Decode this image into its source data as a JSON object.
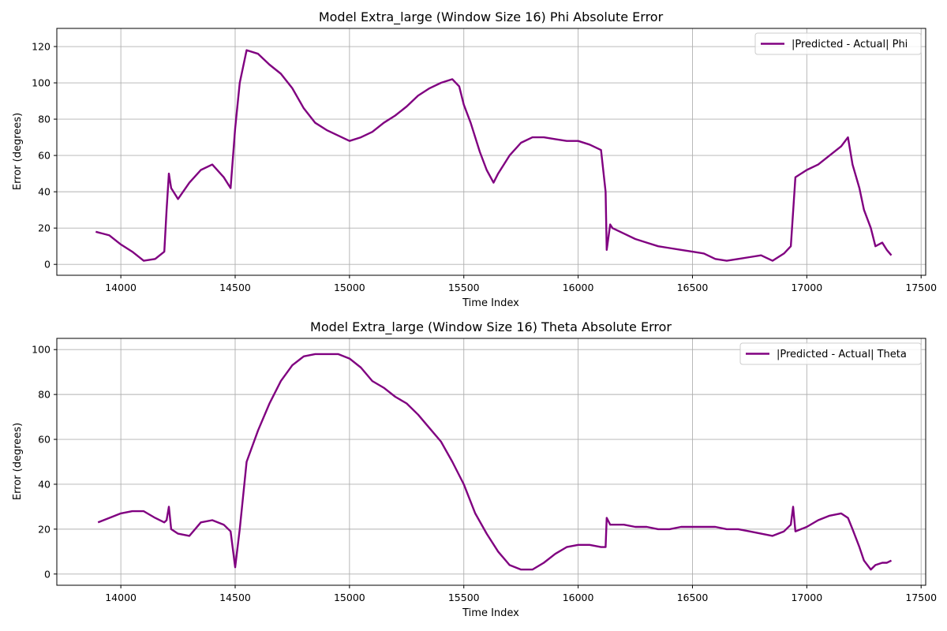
{
  "chart_data": [
    {
      "type": "line",
      "title": "Model Extra_large (Window Size 16) Phi Absolute Error",
      "xlabel": "Time Index",
      "ylabel": "Error (degrees)",
      "xlim": [
        13720,
        17520
      ],
      "ylim": [
        -6,
        130
      ],
      "xticks": [
        14000,
        14500,
        15000,
        15500,
        16000,
        16500,
        17000,
        17500
      ],
      "yticks": [
        0,
        20,
        40,
        60,
        80,
        100,
        120
      ],
      "grid": true,
      "legend_position": "top-right",
      "series": [
        {
          "name": "|Predicted - Actual| Phi",
          "color": "#800080",
          "x": [
            13890,
            13950,
            14000,
            14050,
            14100,
            14150,
            14190,
            14200,
            14210,
            14220,
            14250,
            14300,
            14350,
            14400,
            14450,
            14480,
            14500,
            14520,
            14550,
            14600,
            14650,
            14700,
            14750,
            14800,
            14850,
            14900,
            14950,
            15000,
            15050,
            15100,
            15150,
            15200,
            15250,
            15300,
            15350,
            15400,
            15450,
            15480,
            15500,
            15530,
            15570,
            15600,
            15630,
            15650,
            15700,
            15750,
            15800,
            15850,
            15900,
            15950,
            16000,
            16050,
            16100,
            16120,
            16125,
            16140,
            16150,
            16200,
            16250,
            16300,
            16350,
            16400,
            16450,
            16500,
            16550,
            16600,
            16650,
            16700,
            16750,
            16800,
            16850,
            16900,
            16930,
            16950,
            17000,
            17050,
            17100,
            17150,
            17180,
            17200,
            17230,
            17250,
            17280,
            17300,
            17330,
            17350,
            17370
          ],
          "y": [
            18,
            16,
            11,
            7,
            2,
            3,
            7,
            30,
            50,
            42,
            36,
            45,
            52,
            55,
            48,
            42,
            75,
            100,
            118,
            116,
            110,
            105,
            97,
            86,
            78,
            74,
            71,
            68,
            70,
            73,
            78,
            82,
            87,
            93,
            97,
            100,
            102,
            98,
            88,
            78,
            62,
            52,
            45,
            50,
            60,
            67,
            70,
            70,
            69,
            68,
            68,
            66,
            63,
            40,
            8,
            22,
            20,
            17,
            14,
            12,
            10,
            9,
            8,
            7,
            6,
            3,
            2,
            3,
            4,
            5,
            2,
            6,
            10,
            48,
            52,
            55,
            60,
            65,
            70,
            55,
            42,
            30,
            20,
            10,
            12,
            8,
            5
          ]
        }
      ]
    },
    {
      "type": "line",
      "title": "Model Extra_large (Window Size 16) Theta Absolute Error",
      "xlabel": "Time Index",
      "ylabel": "Error (degrees)",
      "xlim": [
        13720,
        17520
      ],
      "ylim": [
        -5,
        105
      ],
      "xticks": [
        14000,
        14500,
        15000,
        15500,
        16000,
        16500,
        17000,
        17500
      ],
      "yticks": [
        0,
        20,
        40,
        60,
        80,
        100
      ],
      "grid": true,
      "legend_position": "top-right",
      "series": [
        {
          "name": "|Predicted - Actual| Theta",
          "color": "#800080",
          "x": [
            13900,
            13950,
            14000,
            14050,
            14100,
            14150,
            14190,
            14200,
            14210,
            14220,
            14250,
            14300,
            14350,
            14400,
            14450,
            14480,
            14500,
            14520,
            14550,
            14600,
            14650,
            14700,
            14750,
            14800,
            14850,
            14900,
            14950,
            15000,
            15050,
            15100,
            15150,
            15200,
            15250,
            15300,
            15350,
            15400,
            15450,
            15500,
            15550,
            15600,
            15650,
            15700,
            15750,
            15800,
            15850,
            15900,
            15950,
            16000,
            16050,
            16100,
            16120,
            16125,
            16140,
            16150,
            16200,
            16250,
            16300,
            16350,
            16400,
            16450,
            16500,
            16550,
            16600,
            16650,
            16700,
            16750,
            16800,
            16850,
            16900,
            16930,
            16940,
            16950,
            17000,
            17050,
            17100,
            17150,
            17180,
            17200,
            17230,
            17250,
            17280,
            17300,
            17330,
            17350,
            17370
          ],
          "y": [
            23,
            25,
            27,
            28,
            28,
            25,
            23,
            24,
            30,
            20,
            18,
            17,
            23,
            24,
            22,
            19,
            3,
            20,
            50,
            64,
            76,
            86,
            93,
            97,
            98,
            98,
            98,
            96,
            92,
            86,
            83,
            79,
            76,
            71,
            65,
            59,
            50,
            40,
            27,
            18,
            10,
            4,
            2,
            2,
            5,
            9,
            12,
            13,
            13,
            12,
            12,
            25,
            22,
            22,
            22,
            21,
            21,
            20,
            20,
            21,
            21,
            21,
            21,
            20,
            20,
            19,
            18,
            17,
            19,
            22,
            30,
            19,
            21,
            24,
            26,
            27,
            25,
            20,
            12,
            6,
            2,
            4,
            5,
            5,
            6
          ]
        }
      ]
    }
  ]
}
